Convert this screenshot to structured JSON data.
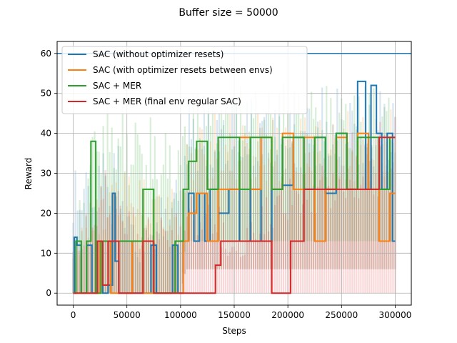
{
  "chart_data": {
    "type": "line",
    "title": "Buffer size = 50000",
    "xlabel": "Steps",
    "ylabel": "Reward",
    "xlim": [
      -15000,
      315000
    ],
    "ylim": [
      -3,
      63
    ],
    "xticks": [
      0,
      50000,
      100000,
      150000,
      200000,
      250000,
      300000
    ],
    "yticks": [
      0,
      10,
      20,
      30,
      40,
      50,
      60
    ],
    "grid": true,
    "legend_position": "top-left",
    "reference_line": {
      "y": 60,
      "color": "#1f77b4"
    },
    "series": [
      {
        "name": "SAC (without optimizer resets)",
        "color": "#1f77b4",
        "mean": [
          [
            0,
            0
          ],
          [
            2000,
            14
          ],
          [
            5000,
            12
          ],
          [
            10000,
            0
          ],
          [
            15000,
            12
          ],
          [
            20000,
            0
          ],
          [
            25000,
            13
          ],
          [
            30000,
            0
          ],
          [
            35000,
            2
          ],
          [
            38000,
            25
          ],
          [
            40000,
            8
          ],
          [
            45000,
            0
          ],
          [
            50000,
            0
          ],
          [
            60000,
            0
          ],
          [
            70000,
            0
          ],
          [
            75000,
            12
          ],
          [
            80000,
            0
          ],
          [
            90000,
            0
          ],
          [
            95000,
            12
          ],
          [
            100000,
            0
          ],
          [
            105000,
            13
          ],
          [
            110000,
            25
          ],
          [
            115000,
            13
          ],
          [
            120000,
            25
          ],
          [
            125000,
            13
          ],
          [
            130000,
            26
          ],
          [
            140000,
            20
          ],
          [
            150000,
            26
          ],
          [
            160000,
            13
          ],
          [
            170000,
            26
          ],
          [
            180000,
            13
          ],
          [
            190000,
            26
          ],
          [
            200000,
            27
          ],
          [
            210000,
            39
          ],
          [
            220000,
            26
          ],
          [
            230000,
            39
          ],
          [
            240000,
            25
          ],
          [
            250000,
            40
          ],
          [
            260000,
            26
          ],
          [
            270000,
            53
          ],
          [
            275000,
            26
          ],
          [
            280000,
            52
          ],
          [
            285000,
            40
          ],
          [
            290000,
            26
          ],
          [
            295000,
            40
          ],
          [
            300000,
            13
          ]
        ],
        "band_low": [
          [
            0,
            0
          ],
          [
            100000,
            0
          ],
          [
            105000,
            6
          ],
          [
            300000,
            6
          ]
        ],
        "band_high": [
          [
            0,
            32
          ],
          [
            40000,
            40
          ],
          [
            60000,
            13
          ],
          [
            100000,
            33
          ],
          [
            105000,
            50
          ],
          [
            300000,
            53
          ]
        ]
      },
      {
        "name": "SAC (with optimizer resets between envs)",
        "color": "#ff7f0e",
        "mean": [
          [
            0,
            0
          ],
          [
            10000,
            0
          ],
          [
            20000,
            0
          ],
          [
            30000,
            13
          ],
          [
            40000,
            0
          ],
          [
            50000,
            0
          ],
          [
            60000,
            13
          ],
          [
            70000,
            0
          ],
          [
            80000,
            0
          ],
          [
            90000,
            0
          ],
          [
            100000,
            0
          ],
          [
            105000,
            13
          ],
          [
            110000,
            20
          ],
          [
            120000,
            25
          ],
          [
            130000,
            13
          ],
          [
            140000,
            26
          ],
          [
            150000,
            26
          ],
          [
            160000,
            39
          ],
          [
            170000,
            26
          ],
          [
            180000,
            39
          ],
          [
            190000,
            26
          ],
          [
            200000,
            40
          ],
          [
            210000,
            26
          ],
          [
            220000,
            39
          ],
          [
            230000,
            13
          ],
          [
            240000,
            26
          ],
          [
            250000,
            39
          ],
          [
            260000,
            26
          ],
          [
            270000,
            40
          ],
          [
            280000,
            26
          ],
          [
            290000,
            13
          ],
          [
            300000,
            25
          ]
        ],
        "band_low": [
          [
            0,
            0
          ],
          [
            100000,
            0
          ],
          [
            105000,
            6
          ],
          [
            300000,
            6
          ]
        ],
        "band_high": [
          [
            0,
            13
          ],
          [
            40000,
            33
          ],
          [
            100000,
            26
          ],
          [
            110000,
            46
          ],
          [
            300000,
            46
          ]
        ]
      },
      {
        "name": "SAC + MER",
        "color": "#2ca02c",
        "mean": [
          [
            0,
            0
          ],
          [
            5000,
            13
          ],
          [
            10000,
            0
          ],
          [
            15000,
            13
          ],
          [
            18000,
            38
          ],
          [
            20000,
            38
          ],
          [
            22000,
            0
          ],
          [
            30000,
            13
          ],
          [
            40000,
            13
          ],
          [
            50000,
            13
          ],
          [
            60000,
            13
          ],
          [
            70000,
            26
          ],
          [
            80000,
            0
          ],
          [
            90000,
            0
          ],
          [
            100000,
            13
          ],
          [
            105000,
            26
          ],
          [
            110000,
            33
          ],
          [
            120000,
            38
          ],
          [
            130000,
            26
          ],
          [
            140000,
            39
          ],
          [
            150000,
            39
          ],
          [
            160000,
            26
          ],
          [
            170000,
            39
          ],
          [
            180000,
            39
          ],
          [
            190000,
            26
          ],
          [
            200000,
            39
          ],
          [
            210000,
            39
          ],
          [
            220000,
            26
          ],
          [
            230000,
            39
          ],
          [
            240000,
            26
          ],
          [
            250000,
            40
          ],
          [
            260000,
            26
          ],
          [
            270000,
            39
          ],
          [
            280000,
            39
          ],
          [
            290000,
            26
          ],
          [
            300000,
            39
          ]
        ],
        "band_low": [
          [
            0,
            0
          ],
          [
            100000,
            0
          ],
          [
            105000,
            13
          ],
          [
            300000,
            13
          ]
        ],
        "band_high": [
          [
            0,
            13
          ],
          [
            15000,
            40
          ],
          [
            25000,
            53
          ],
          [
            100000,
            40
          ],
          [
            105000,
            52
          ],
          [
            300000,
            53
          ]
        ]
      },
      {
        "name": "SAC + MER (final env regular SAC)",
        "color": "#d62728",
        "mean": [
          [
            0,
            0
          ],
          [
            10000,
            0
          ],
          [
            20000,
            0
          ],
          [
            25000,
            13
          ],
          [
            30000,
            2
          ],
          [
            35000,
            13
          ],
          [
            40000,
            13
          ],
          [
            45000,
            0
          ],
          [
            50000,
            0
          ],
          [
            60000,
            0
          ],
          [
            70000,
            13
          ],
          [
            80000,
            0
          ],
          [
            90000,
            0
          ],
          [
            100000,
            0
          ],
          [
            110000,
            0
          ],
          [
            120000,
            0
          ],
          [
            130000,
            0
          ],
          [
            135000,
            7
          ],
          [
            140000,
            13
          ],
          [
            150000,
            13
          ],
          [
            160000,
            13
          ],
          [
            170000,
            13
          ],
          [
            180000,
            13
          ],
          [
            190000,
            0
          ],
          [
            200000,
            0
          ],
          [
            205000,
            13
          ],
          [
            210000,
            13
          ],
          [
            220000,
            26
          ],
          [
            230000,
            26
          ],
          [
            240000,
            26
          ],
          [
            250000,
            26
          ],
          [
            260000,
            26
          ],
          [
            270000,
            26
          ],
          [
            280000,
            26
          ],
          [
            290000,
            39
          ],
          [
            300000,
            39
          ]
        ],
        "band_low": [
          [
            0,
            0
          ],
          [
            300000,
            0
          ]
        ],
        "band_high": [
          [
            0,
            13
          ],
          [
            30000,
            33
          ],
          [
            60000,
            20
          ],
          [
            100000,
            20
          ],
          [
            105000,
            26
          ],
          [
            130000,
            26
          ],
          [
            150000,
            13
          ],
          [
            200000,
            33
          ],
          [
            300000,
            46
          ]
        ]
      }
    ]
  }
}
